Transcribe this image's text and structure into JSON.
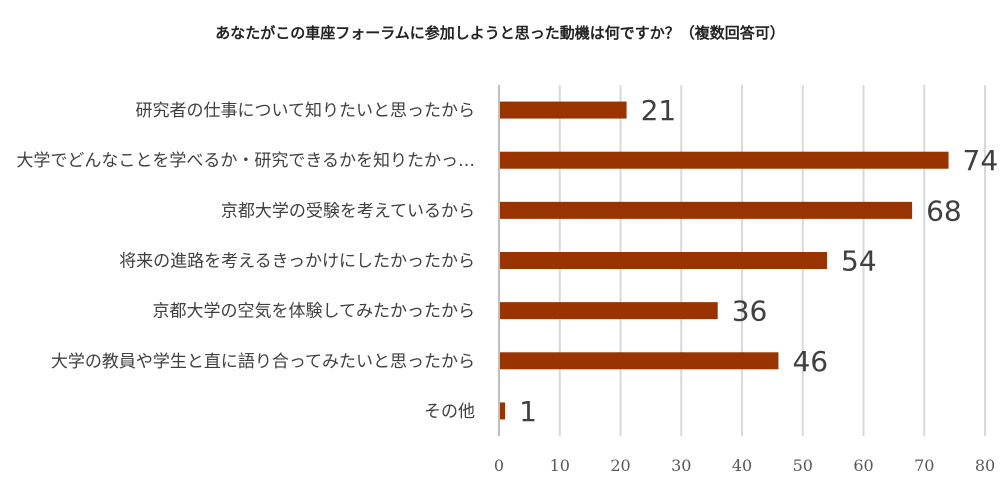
{
  "chart_data": {
    "type": "bar",
    "orientation": "horizontal",
    "title": "あなたがこの車座フォーラムに参加しようと思った動機は何ですか？（複数回答可）",
    "categories": [
      "研究者の仕事について知りたいと思ったから",
      "大学でどんなことを学べるか・研究できるかを知りたかっ…",
      "京都大学の受験を考えているから",
      "将来の進路を考えるきっかけにしたかったから",
      "京都大学の空気を体験してみたかったから",
      "大学の教員や学生と直に語り合ってみたいと思ったから",
      "その他"
    ],
    "values": [
      21,
      74,
      68,
      54,
      36,
      46,
      1
    ],
    "xlim": [
      0,
      80
    ],
    "xticks": [
      0,
      10,
      20,
      30,
      40,
      50,
      60,
      70,
      80
    ],
    "xlabel": "",
    "ylabel": "",
    "grid": true,
    "legend": "none",
    "bar_color": "#993300"
  }
}
